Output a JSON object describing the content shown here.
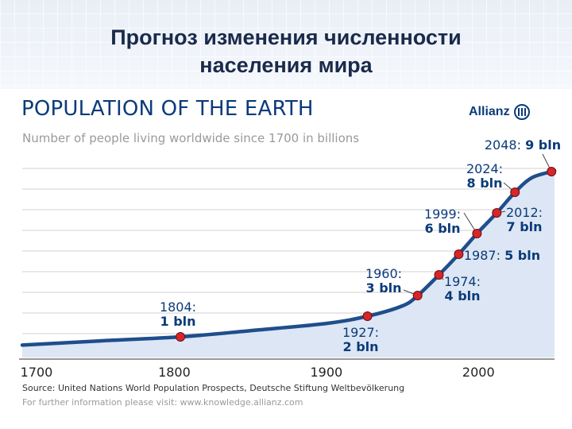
{
  "slide": {
    "title_line1": "Прогноз изменения численности",
    "title_line2": "населения мира"
  },
  "brand": {
    "name": "Allianz"
  },
  "chart_data": {
    "type": "area",
    "title": "POPULATION OF THE EARTH",
    "subtitle": "Number of people living worldwide since 1700 in billions",
    "xlim": [
      1700,
      2050
    ],
    "ylim": [
      0,
      10
    ],
    "x_ticks": [
      "1700",
      "1800",
      "1900",
      "2000"
    ],
    "grid": true,
    "colors": {
      "line": "#1f4e8c",
      "fill": "#dde6f4",
      "marker": "#d7262a",
      "text": "#0b3b7a"
    },
    "curve": [
      {
        "x": 1700,
        "y": 0.6
      },
      {
        "x": 1750,
        "y": 0.8
      },
      {
        "x": 1804,
        "y": 1
      },
      {
        "x": 1850,
        "y": 1.3
      },
      {
        "x": 1900,
        "y": 1.65
      },
      {
        "x": 1927,
        "y": 2
      },
      {
        "x": 1950,
        "y": 2.5
      },
      {
        "x": 1960,
        "y": 3
      },
      {
        "x": 1974,
        "y": 4
      },
      {
        "x": 1987,
        "y": 5
      },
      {
        "x": 1999,
        "y": 6
      },
      {
        "x": 2012,
        "y": 7
      },
      {
        "x": 2024,
        "y": 8
      },
      {
        "x": 2035,
        "y": 8.7
      },
      {
        "x": 2048,
        "y": 9
      },
      {
        "x": 2050,
        "y": 9.05
      }
    ],
    "milestones": [
      {
        "year": "1804:",
        "value": "1 bln",
        "x": 1804,
        "y": 1
      },
      {
        "year": "1927:",
        "value": "2 bln",
        "x": 1927,
        "y": 2
      },
      {
        "year": "1960:",
        "value": "3 bln",
        "x": 1960,
        "y": 3
      },
      {
        "year": "1974:",
        "value": "4 bln",
        "x": 1974,
        "y": 4
      },
      {
        "year": "1987:",
        "value": "5 bln",
        "x": 1987,
        "y": 5
      },
      {
        "year": "1999:",
        "value": "6 bln",
        "x": 1999,
        "y": 6
      },
      {
        "year": "2012:",
        "value": "7 bln",
        "x": 2012,
        "y": 7
      },
      {
        "year": "2024:",
        "value": "8 bln",
        "x": 2024,
        "y": 8
      },
      {
        "year": "2048:",
        "value": "9 bln",
        "x": 2048,
        "y": 9
      }
    ]
  },
  "footer": {
    "source": "Source: United Nations World Population Prospects, Deutsche Stiftung Weltbevölkerung",
    "info": "For further information please visit: www.knowledge.allianz.com"
  }
}
